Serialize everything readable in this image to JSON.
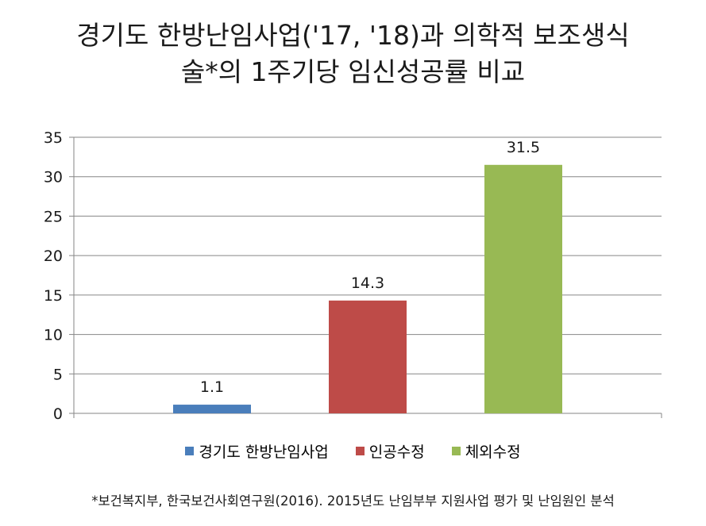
{
  "chart_data": {
    "type": "bar",
    "title_line1": "경기도 한방난임사업('17, '18)과 의학적 보조생식",
    "title_line2": "술*의 1주기당 임신성공률 비교",
    "categories": [
      "경기도 한방난임사업",
      "인공수정",
      "체외수정"
    ],
    "values": [
      1.1,
      14.3,
      31.5
    ],
    "value_labels": [
      "1.1",
      "14.3",
      "31.5"
    ],
    "colors": [
      "#4a7ebb",
      "#be4b48",
      "#98b954"
    ],
    "ylim": [
      0,
      35
    ],
    "yticks": [
      0,
      5,
      10,
      15,
      20,
      25,
      30,
      35
    ],
    "grid": true,
    "legend_position": "bottom"
  },
  "source_note": "*보건복지부, 한국보건사회연구원(2016). 2015년도 난임부부 지원사업 평가 및 난임원인 분석"
}
